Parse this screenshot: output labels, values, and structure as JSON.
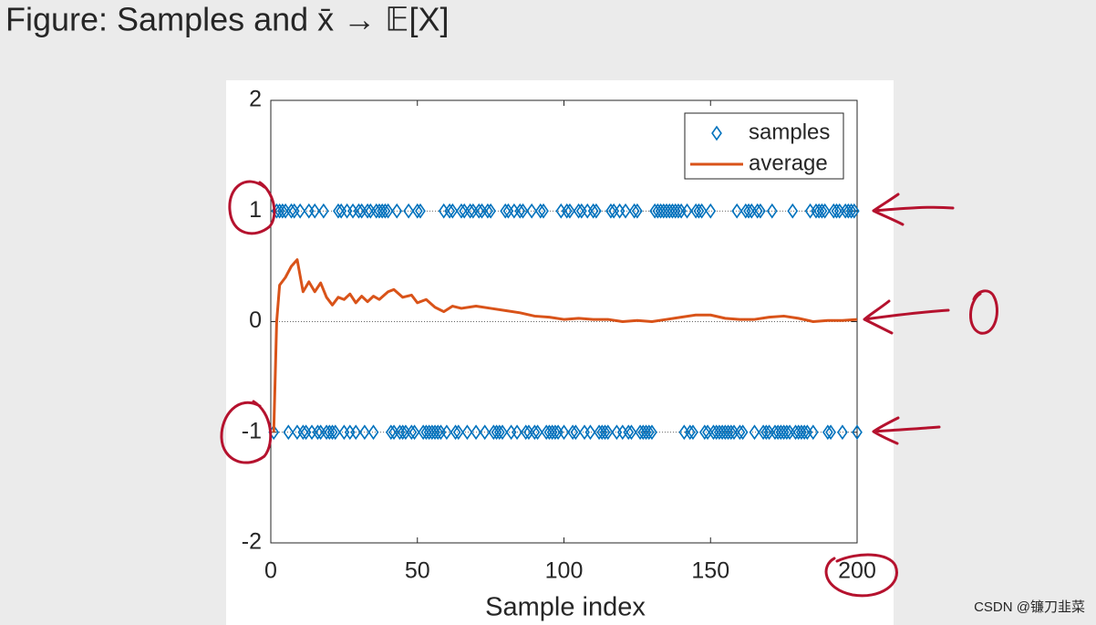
{
  "chart_data": {
    "type": "scatter",
    "title": "Figure: Samples and x̄ → 𝔼[X]",
    "xlabel": "Sample index",
    "xlim": [
      0,
      200
    ],
    "xticks": [
      0,
      50,
      100,
      150,
      200
    ],
    "ylim": [
      -2,
      2
    ],
    "yticks": [
      -2,
      -1,
      0,
      1,
      2
    ],
    "hlines": [
      -1,
      0,
      1
    ],
    "legend": "upper right",
    "series": [
      {
        "name": "samples",
        "type": "scatter",
        "color": "#0072bd",
        "x": [
          1,
          2,
          3,
          4,
          5,
          6,
          7,
          8,
          9,
          10,
          11,
          12,
          13,
          14,
          15,
          16,
          17,
          18,
          19,
          20,
          21,
          22,
          23,
          24,
          25,
          26,
          27,
          28,
          29,
          30,
          31,
          32,
          33,
          34,
          35,
          36,
          37,
          38,
          39,
          40,
          41,
          42,
          43,
          44,
          45,
          46,
          47,
          48,
          49,
          50,
          51,
          52,
          53,
          54,
          55,
          56,
          57,
          58,
          59,
          60,
          61,
          62,
          63,
          64,
          65,
          66,
          67,
          68,
          69,
          70,
          71,
          72,
          73,
          74,
          75,
          76,
          77,
          78,
          79,
          80,
          81,
          82,
          83,
          84,
          85,
          86,
          87,
          88,
          89,
          90,
          91,
          92,
          93,
          94,
          95,
          96,
          97,
          98,
          99,
          100,
          101,
          102,
          103,
          104,
          105,
          106,
          107,
          108,
          109,
          110,
          111,
          112,
          113,
          114,
          115,
          116,
          117,
          118,
          119,
          120,
          121,
          122,
          123,
          124,
          125,
          126,
          127,
          128,
          129,
          130,
          131,
          132,
          133,
          134,
          135,
          136,
          137,
          138,
          139,
          140,
          141,
          142,
          143,
          144,
          145,
          146,
          147,
          148,
          149,
          150,
          151,
          152,
          153,
          154,
          155,
          156,
          157,
          158,
          159,
          160,
          161,
          162,
          163,
          164,
          165,
          166,
          167,
          168,
          169,
          170,
          171,
          172,
          173,
          174,
          175,
          176,
          177,
          178,
          179,
          180,
          181,
          182,
          183,
          184,
          185,
          186,
          187,
          188,
          189,
          190,
          191,
          192,
          193,
          194,
          195,
          196,
          197,
          198,
          199,
          200
        ],
        "values": [
          -1,
          1,
          1,
          1,
          1,
          -1,
          1,
          1,
          -1,
          1,
          -1,
          -1,
          1,
          -1,
          1,
          -1,
          -1,
          1,
          -1,
          -1,
          -1,
          -1,
          1,
          1,
          -1,
          1,
          -1,
          1,
          -1,
          1,
          1,
          -1,
          1,
          1,
          -1,
          1,
          1,
          1,
          1,
          1,
          -1,
          -1,
          1,
          -1,
          -1,
          -1,
          1,
          -1,
          -1,
          1,
          1,
          -1,
          -1,
          -1,
          -1,
          -1,
          -1,
          -1,
          1,
          -1,
          1,
          1,
          -1,
          -1,
          1,
          1,
          -1,
          1,
          1,
          -1,
          1,
          1,
          -1,
          1,
          1,
          -1,
          -1,
          -1,
          -1,
          1,
          1,
          -1,
          1,
          -1,
          1,
          1,
          -1,
          -1,
          1,
          -1,
          -1,
          1,
          1,
          -1,
          -1,
          -1,
          -1,
          -1,
          1,
          -1,
          1,
          1,
          -1,
          -1,
          1,
          1,
          -1,
          1,
          -1,
          1,
          1,
          -1,
          -1,
          -1,
          -1,
          1,
          1,
          -1,
          1,
          -1,
          1,
          -1,
          -1,
          1,
          1,
          -1,
          -1,
          -1,
          -1,
          -1,
          1,
          1,
          1,
          1,
          1,
          1,
          1,
          1,
          1,
          1,
          -1,
          1,
          -1,
          -1,
          1,
          1,
          1,
          -1,
          -1,
          1,
          -1,
          -1,
          -1,
          -1,
          -1,
          -1,
          -1,
          -1,
          1,
          -1,
          -1,
          1,
          1,
          1,
          -1,
          1,
          1,
          -1,
          -1,
          -1,
          1,
          -1,
          -1,
          -1,
          -1,
          -1,
          -1,
          1,
          -1,
          -1,
          -1,
          -1,
          -1,
          1,
          -1,
          1,
          1,
          1,
          1,
          -1,
          -1,
          1,
          1,
          1,
          -1,
          1,
          1,
          1,
          1,
          -1
        ]
      },
      {
        "name": "average",
        "type": "line",
        "color": "#d95319",
        "x": [
          1,
          2,
          3,
          5,
          7,
          9,
          11,
          13,
          15,
          17,
          19,
          21,
          23,
          25,
          27,
          29,
          31,
          33,
          35,
          37,
          40,
          42,
          45,
          48,
          50,
          53,
          56,
          59,
          62,
          65,
          70,
          75,
          80,
          85,
          90,
          95,
          100,
          105,
          110,
          115,
          120,
          125,
          130,
          135,
          140,
          145,
          150,
          155,
          160,
          165,
          170,
          175,
          180,
          185,
          190,
          195,
          200
        ],
        "values": [
          -1,
          0,
          0.33,
          0.4,
          0.5,
          0.56,
          0.27,
          0.36,
          0.27,
          0.35,
          0.22,
          0.15,
          0.22,
          0.2,
          0.25,
          0.17,
          0.23,
          0.18,
          0.23,
          0.2,
          0.27,
          0.29,
          0.22,
          0.24,
          0.17,
          0.2,
          0.13,
          0.09,
          0.14,
          0.12,
          0.14,
          0.12,
          0.1,
          0.08,
          0.05,
          0.04,
          0.02,
          0.03,
          0.02,
          0.02,
          0,
          0.01,
          0,
          0.02,
          0.04,
          0.06,
          0.06,
          0.03,
          0.02,
          0.02,
          0.04,
          0.05,
          0.03,
          0,
          0.01,
          0.01,
          0.02
        ]
      }
    ]
  },
  "watermark": "CSDN @镰刀韭菜"
}
